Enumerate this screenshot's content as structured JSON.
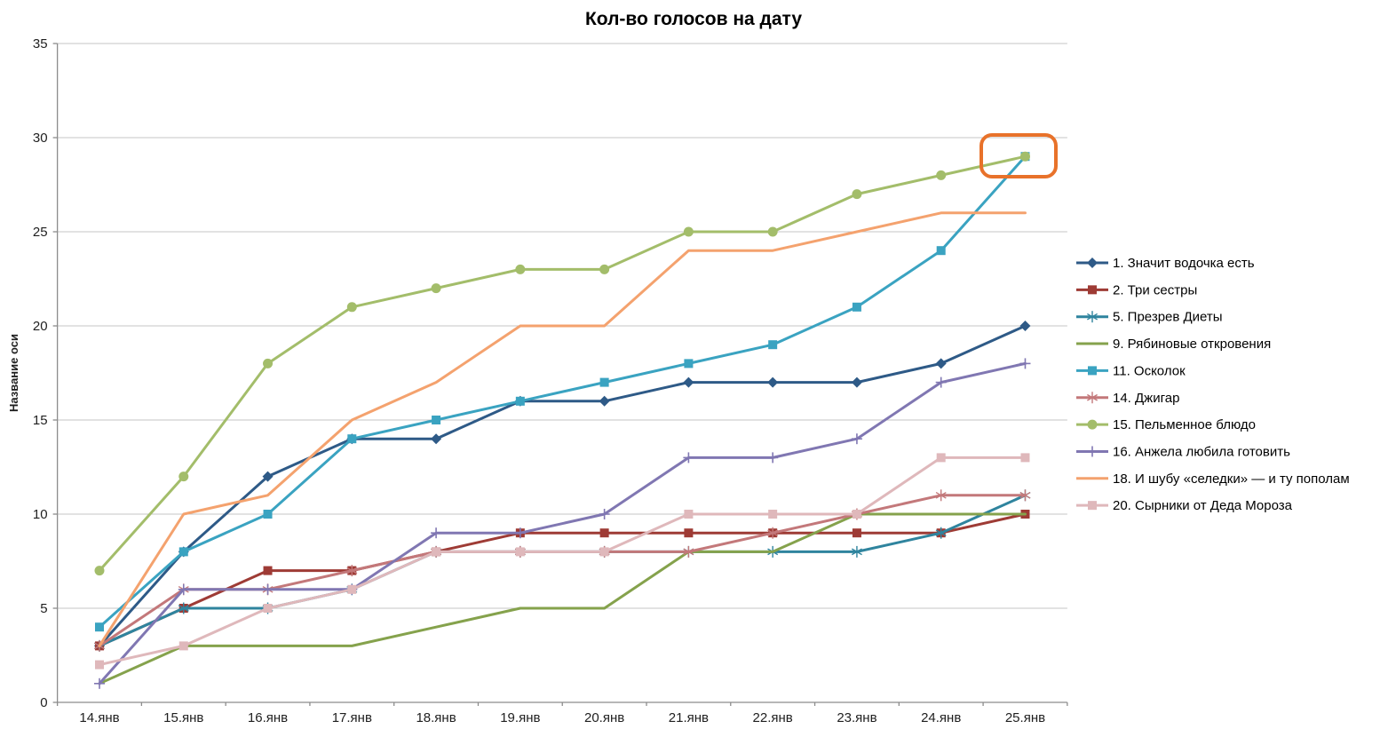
{
  "chart_data": {
    "type": "line",
    "title": "Кол-во голосов на дату",
    "xlabel": "",
    "ylabel": "Название оси",
    "ylim": [
      0,
      35
    ],
    "yticks": [
      0,
      5,
      10,
      15,
      20,
      25,
      30,
      35
    ],
    "grid": "horizontal",
    "legend_position": "right",
    "categories": [
      "14.янв",
      "15.янв",
      "16.янв",
      "17.янв",
      "18.янв",
      "19.янв",
      "20.янв",
      "21.янв",
      "22.янв",
      "23.янв",
      "24.янв",
      "25.янв"
    ],
    "series": [
      {
        "name": "1. Значит водочка есть",
        "color": "#2E5A87",
        "marker": "diamond",
        "values": [
          3,
          8,
          12,
          14,
          14,
          16,
          16,
          17,
          17,
          17,
          18,
          20
        ]
      },
      {
        "name": "2. Три сестры",
        "color": "#9E3B35",
        "marker": "square",
        "values": [
          3,
          5,
          7,
          7,
          8,
          9,
          9,
          9,
          9,
          9,
          9,
          10
        ]
      },
      {
        "name": "5. Презрев Диеты",
        "color": "#2F849E",
        "marker": "asterisk",
        "values": [
          3,
          5,
          5,
          6,
          8,
          8,
          8,
          8,
          8,
          8,
          9,
          11
        ]
      },
      {
        "name": "9. Рябиновые откровения",
        "color": "#85A24C",
        "marker": "none",
        "values": [
          1,
          3,
          3,
          3,
          4,
          5,
          5,
          8,
          8,
          10,
          10,
          10
        ]
      },
      {
        "name": "11. Осколок",
        "color": "#3AA3C1",
        "marker": "square",
        "values": [
          4,
          8,
          10,
          14,
          15,
          16,
          17,
          18,
          19,
          21,
          24,
          29
        ]
      },
      {
        "name": "14. Джигар",
        "color": "#C3787A",
        "marker": "asterisk",
        "values": [
          3,
          6,
          6,
          7,
          8,
          8,
          8,
          8,
          9,
          10,
          11,
          11
        ]
      },
      {
        "name": "15. Пельменное блюдо",
        "color": "#A3BD6A",
        "marker": "circle",
        "values": [
          7,
          12,
          18,
          21,
          22,
          23,
          23,
          25,
          25,
          27,
          28,
          29
        ]
      },
      {
        "name": "16. Анжела любила готовить",
        "color": "#8077B2",
        "marker": "plus",
        "values": [
          1,
          6,
          6,
          6,
          9,
          9,
          10,
          13,
          13,
          14,
          17,
          18
        ]
      },
      {
        "name": "18. И шубу «селедки» — и ту пополам",
        "color": "#F4A26E",
        "marker": "none",
        "values": [
          3,
          10,
          11,
          15,
          17,
          20,
          20,
          24,
          24,
          25,
          26,
          26
        ]
      },
      {
        "name": "20. Сырники от Деда Мороза",
        "color": "#DFB8BB",
        "marker": "square",
        "values": [
          2,
          3,
          5,
          6,
          8,
          8,
          8,
          10,
          10,
          10,
          13,
          13
        ]
      }
    ],
    "annotation": {
      "shape": "rounded-rect",
      "category": "25.янв",
      "value": 29,
      "color": "#E8722A"
    }
  },
  "colors": {
    "gridline": "#C4C4C4",
    "axis": "#8C8C8C",
    "background": "#FFFFFF",
    "annotation_box": "#E8722A"
  }
}
